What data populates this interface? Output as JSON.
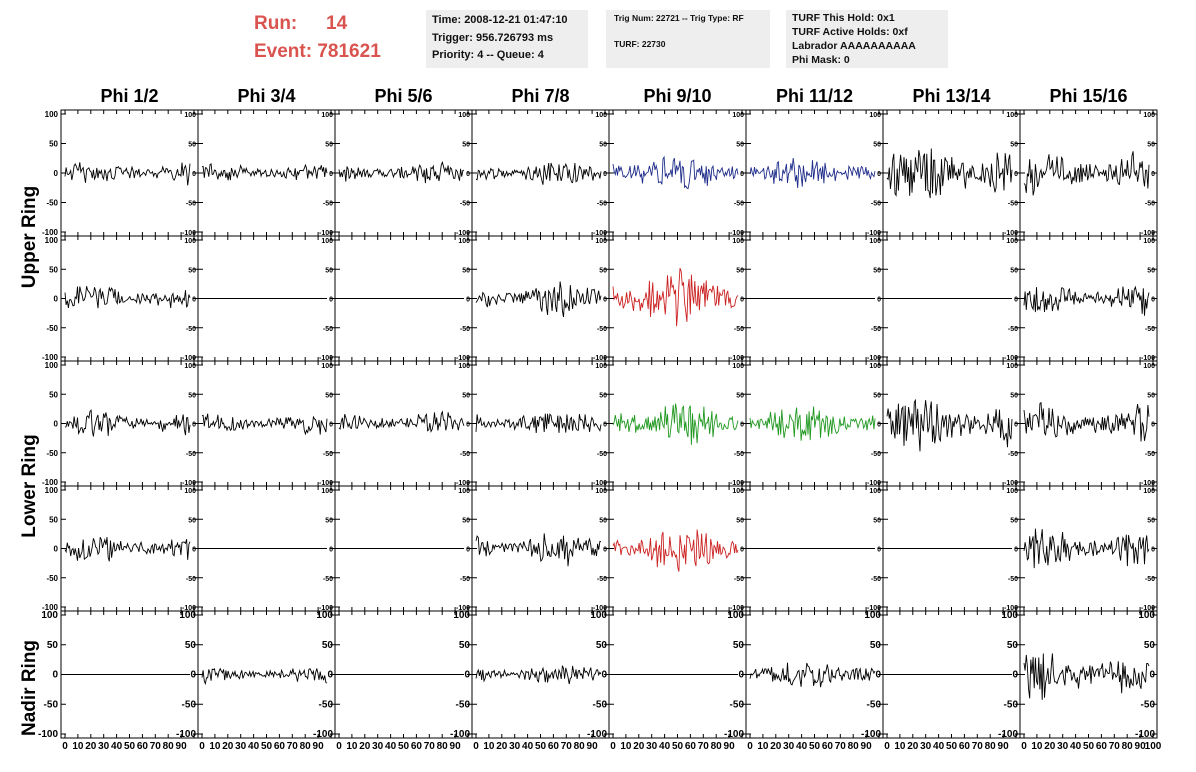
{
  "header": {
    "run_label": "Run:",
    "run_value": "14",
    "event_label": "Event:",
    "event_value": "781621"
  },
  "info_box_1": {
    "time": "Time: 2008-12-21 01:47:10",
    "trigger": "Trigger: 956.726793 ms",
    "priority": "Priority: 4 -- Queue: 4"
  },
  "info_box_2": {
    "trig": "Trig Num: 22721 -- Trig Type: RF",
    "turf": "TURF: 22730"
  },
  "info_box_3": {
    "hold": "TURF This Hold: 0x1",
    "active": "TURF Active Holds: 0xf",
    "labrador": "Labrador AAAAAAAAAA",
    "phimask": "Phi Mask: 0"
  },
  "columns": [
    "Phi 1/2",
    "Phi 3/4",
    "Phi 5/6",
    "Phi 7/8",
    "Phi 9/10",
    "Phi 11/12",
    "Phi 13/14",
    "Phi 15/16"
  ],
  "ring_labels": [
    "Upper Ring",
    "Lower Ring",
    "Nadir Ring"
  ],
  "axes": {
    "y_ticks": [
      "100",
      "50",
      "0",
      "-50",
      "-100"
    ],
    "y_range": [
      -100,
      100
    ],
    "x_range": [
      0,
      100
    ],
    "x_ticks": [
      "0",
      "10",
      "20",
      "30",
      "40",
      "50",
      "60",
      "70",
      "80",
      "90",
      "100"
    ]
  },
  "chart_data": {
    "type": "line",
    "xlim": [
      0,
      100
    ],
    "ylim": [
      -100,
      100
    ],
    "rows": [
      {
        "ring": "Upper Ring",
        "traces": [
          {
            "col": "Phi 1/2",
            "color": "#000000",
            "amp": 22,
            "flat": false
          },
          {
            "col": "Phi 3/4",
            "color": "#000000",
            "amp": 18,
            "flat": false
          },
          {
            "col": "Phi 5/6",
            "color": "#000000",
            "amp": 20,
            "flat": false
          },
          {
            "col": "Phi 7/8",
            "color": "#000000",
            "amp": 22,
            "flat": false
          },
          {
            "col": "Phi 9/10",
            "color": "#1f2d8a",
            "amp": 35,
            "flat": false
          },
          {
            "col": "Phi 11/12",
            "color": "#1f2d8a",
            "amp": 28,
            "flat": false
          },
          {
            "col": "Phi 13/14",
            "color": "#000000",
            "amp": 55,
            "flat": false
          },
          {
            "col": "Phi 15/16",
            "color": "#000000",
            "amp": 40,
            "flat": false
          }
        ]
      },
      {
        "ring": "Upper Ring",
        "traces": [
          {
            "col": "Phi 1/2",
            "color": "#000000",
            "amp": 25,
            "flat": false
          },
          {
            "col": "Phi 3/4",
            "color": "#000000",
            "amp": 0,
            "flat": true
          },
          {
            "col": "Phi 5/6",
            "color": "#000000",
            "amp": 0,
            "flat": true
          },
          {
            "col": "Phi 7/8",
            "color": "#000000",
            "amp": 30,
            "flat": false
          },
          {
            "col": "Phi 9/10",
            "color": "#cc2222",
            "amp": 50,
            "flat": false
          },
          {
            "col": "Phi 11/12",
            "color": "#000000",
            "amp": 0,
            "flat": true
          },
          {
            "col": "Phi 13/14",
            "color": "#000000",
            "amp": 0,
            "flat": true
          },
          {
            "col": "Phi 15/16",
            "color": "#000000",
            "amp": 28,
            "flat": false
          }
        ]
      },
      {
        "ring": "Lower Ring",
        "traces": [
          {
            "col": "Phi 1/2",
            "color": "#000000",
            "amp": 25,
            "flat": false
          },
          {
            "col": "Phi 3/4",
            "color": "#000000",
            "amp": 20,
            "flat": false
          },
          {
            "col": "Phi 5/6",
            "color": "#000000",
            "amp": 22,
            "flat": false
          },
          {
            "col": "Phi 7/8",
            "color": "#000000",
            "amp": 24,
            "flat": false
          },
          {
            "col": "Phi 9/10",
            "color": "#229922",
            "amp": 40,
            "flat": false
          },
          {
            "col": "Phi 11/12",
            "color": "#229922",
            "amp": 32,
            "flat": false
          },
          {
            "col": "Phi 13/14",
            "color": "#000000",
            "amp": 50,
            "flat": false
          },
          {
            "col": "Phi 15/16",
            "color": "#000000",
            "amp": 35,
            "flat": false
          }
        ]
      },
      {
        "ring": "Lower Ring",
        "traces": [
          {
            "col": "Phi 1/2",
            "color": "#000000",
            "amp": 25,
            "flat": false
          },
          {
            "col": "Phi 3/4",
            "color": "#000000",
            "amp": 0,
            "flat": true
          },
          {
            "col": "Phi 5/6",
            "color": "#000000",
            "amp": 0,
            "flat": true
          },
          {
            "col": "Phi 7/8",
            "color": "#000000",
            "amp": 30,
            "flat": false
          },
          {
            "col": "Phi 9/10",
            "color": "#cc2222",
            "amp": 45,
            "flat": false
          },
          {
            "col": "Phi 11/12",
            "color": "#000000",
            "amp": 0,
            "flat": true
          },
          {
            "col": "Phi 13/14",
            "color": "#000000",
            "amp": 0,
            "flat": true
          },
          {
            "col": "Phi 15/16",
            "color": "#000000",
            "amp": 35,
            "flat": false
          }
        ]
      },
      {
        "ring": "Nadir Ring",
        "traces": [
          {
            "col": "Phi 1/2",
            "color": "#000000",
            "amp": 0,
            "flat": true
          },
          {
            "col": "Phi 3/4",
            "color": "#000000",
            "amp": 15,
            "flat": false
          },
          {
            "col": "Phi 5/6",
            "color": "#000000",
            "amp": 0,
            "flat": true
          },
          {
            "col": "Phi 7/8",
            "color": "#000000",
            "amp": 18,
            "flat": false
          },
          {
            "col": "Phi 9/10",
            "color": "#000000",
            "amp": 0,
            "flat": true
          },
          {
            "col": "Phi 11/12",
            "color": "#000000",
            "amp": 25,
            "flat": false
          },
          {
            "col": "Phi 13/14",
            "color": "#000000",
            "amp": 0,
            "flat": true
          },
          {
            "col": "Phi 15/16",
            "color": "#000000",
            "amp": 45,
            "flat": false
          }
        ]
      }
    ]
  }
}
